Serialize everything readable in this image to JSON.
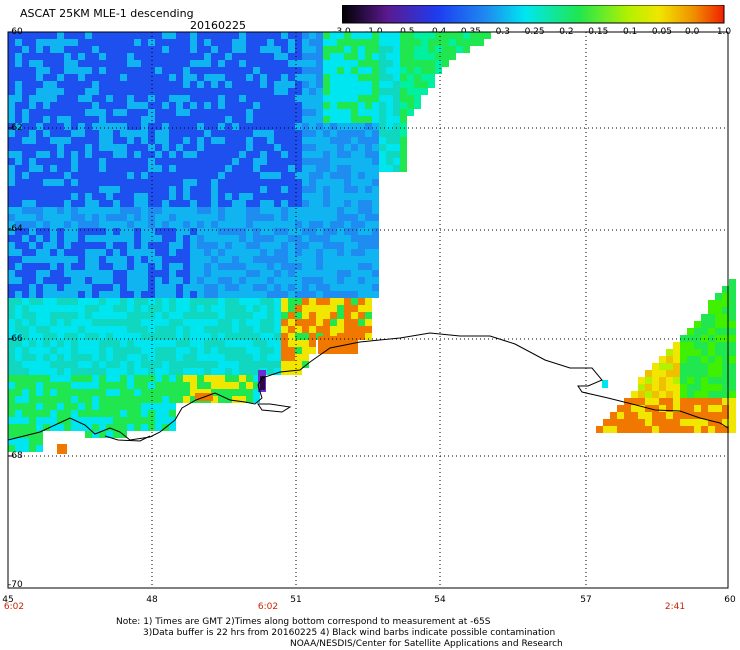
{
  "header": {
    "title": "ASCAT 25KM MLE-1 descending",
    "date": "20160225"
  },
  "colorbar": {
    "ticks": [
      "-3.0",
      "-1.0",
      "-0.5",
      "-0.4",
      "-0.35",
      "-0.3",
      "-0.25",
      "-0.2",
      "-0.15",
      "-0.1",
      "-0.05",
      "0.0",
      "1.0"
    ]
  },
  "axes": {
    "y_ticks": [
      "-60",
      "-62",
      "-64",
      "-66",
      "-68",
      "-70"
    ],
    "x_ticks": [
      "45",
      "48",
      "51",
      "54",
      "57",
      "60"
    ],
    "time_labels": [
      "6:02",
      "6:02",
      "2:41"
    ]
  },
  "notes": {
    "line1": "Note: 1) Times are GMT 2)Times along bottom correspond to measurement at -65S",
    "line2": "3)Data buffer is 22 hrs from 20160225 4) Black wind barbs indicate possible contamination",
    "line3": "NOAA/NESDIS/Center for Satellite Applications and Research"
  },
  "colors": {
    "deep": "#2a0a40",
    "purple": "#6a2ed0",
    "blue": "#1e50f0",
    "cyan": "#00e6f0",
    "green": "#20e650",
    "yellow": "#f0e600",
    "orange": "#f07800",
    "red": "#e62000"
  }
}
